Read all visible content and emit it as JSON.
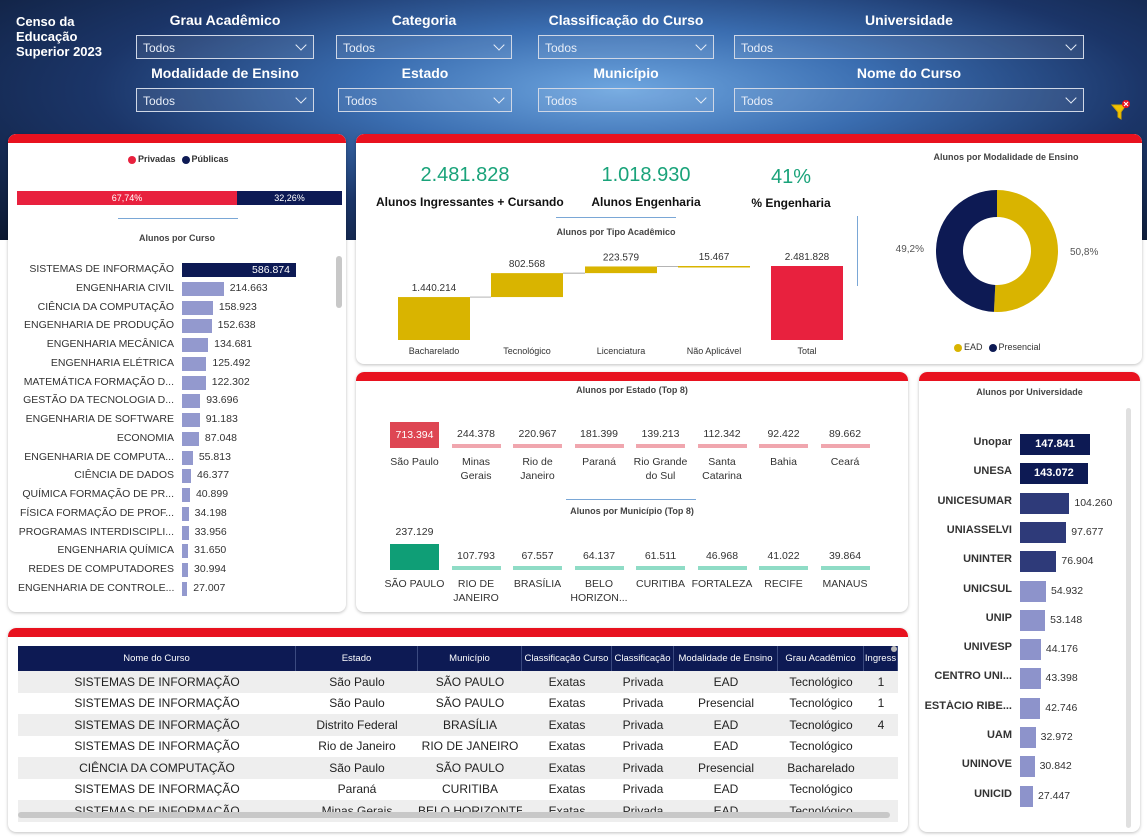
{
  "app_title": "Censo da Educação Superior 2023",
  "filters": [
    {
      "label": "Grau Acadêmico",
      "value": "Todos"
    },
    {
      "label": "Categoria",
      "value": "Todos"
    },
    {
      "label": "Classificação do Curso",
      "value": "Todos"
    },
    {
      "label": "Universidade",
      "value": "Todos"
    },
    {
      "label": "Modalidade de Ensino",
      "value": "Todos"
    },
    {
      "label": "Estado",
      "value": "Todos"
    },
    {
      "label": "Município",
      "value": "Todos"
    },
    {
      "label": "Nome do Curso",
      "value": "Todos"
    }
  ],
  "colors": {
    "accent_red": "#e8121f",
    "navy": "#0d1a54",
    "gold": "#d9b400",
    "green": "#1aa37a",
    "bar_purple": "#8d93cb"
  },
  "categoria": {
    "legend": [
      "Privadas",
      "Públicas"
    ],
    "privadas_pct_label": "67,74%",
    "publicas_pct_label": "32,26%",
    "privadas_pct": 67.74
  },
  "kpis": {
    "ingressantes_value": "2.481.828",
    "ingressantes_label": "Alunos Ingressantes + Cursando",
    "engenharia_value": "1.018.930",
    "engenharia_label": "Alunos Engenharia",
    "pct_value": "41%",
    "pct_label": "% Engenharia"
  },
  "chart_data": [
    {
      "type": "bar",
      "title": "Alunos por Curso",
      "orientation": "horizontal",
      "categories": [
        "SISTEMAS DE INFORMAÇÃO",
        "ENGENHARIA CIVIL",
        "CIÊNCIA DA COMPUTAÇÃO",
        "ENGENHARIA DE PRODUÇÃO",
        "ENGENHARIA MECÂNICA",
        "ENGENHARIA ELÉTRICA",
        "MATEMÁTICA FORMAÇÃO D...",
        "GESTÃO DA TECNOLOGIA D...",
        "ENGENHARIA DE SOFTWARE",
        "ECONOMIA",
        "ENGENHARIA DE COMPUTA...",
        "CIÊNCIA DE DADOS",
        "QUÍMICA FORMAÇÃO DE PR...",
        "FÍSICA FORMAÇÃO DE PROF...",
        "PROGRAMAS INTERDISCIPLI...",
        "ENGENHARIA QUÍMICA",
        "REDES DE COMPUTADORES",
        "ENGENHARIA DE CONTROLE..."
      ],
      "values": [
        586874,
        214663,
        158923,
        152638,
        134681,
        125492,
        122302,
        93696,
        91183,
        87048,
        55813,
        46377,
        40899,
        34198,
        33956,
        31650,
        30994,
        27007
      ],
      "labels": [
        "586.874",
        "214.663",
        "158.923",
        "152.638",
        "134.681",
        "125.492",
        "122.302",
        "93.696",
        "91.183",
        "87.048",
        "55.813",
        "46.377",
        "40.899",
        "34.198",
        "33.956",
        "31.650",
        "30.994",
        "27.007"
      ]
    },
    {
      "type": "bar",
      "title": "Alunos por Tipo Acadêmico",
      "subtype": "waterfall",
      "categories": [
        "Bacharelado",
        "Tecnológico",
        "Licenciatura",
        "Não Aplicável",
        "Total"
      ],
      "values": [
        1440214,
        802568,
        223579,
        15467,
        2481828
      ],
      "labels": [
        "1.440.214",
        "802.568",
        "223.579",
        "15.467",
        "2.481.828"
      ]
    },
    {
      "type": "pie",
      "title": "Alunos por Modalidade de Ensino",
      "donut": true,
      "categories": [
        "EAD",
        "Presencial"
      ],
      "values": [
        50.8,
        49.2
      ],
      "labels": [
        "50,8%",
        "49,2%"
      ],
      "legend_position": "bottom"
    },
    {
      "type": "bar",
      "title": "Alunos por Estado (Top 8)",
      "categories": [
        "São Paulo",
        "Minas Gerais",
        "Rio de Janeiro",
        "Paraná",
        "Rio Grande do Sul",
        "Santa Catarina",
        "Bahia",
        "Ceará"
      ],
      "category_lines": [
        [
          "São Paulo"
        ],
        [
          "Minas",
          "Gerais"
        ],
        [
          "Rio de",
          "Janeiro"
        ],
        [
          "Paraná"
        ],
        [
          "Rio Grande",
          "do Sul"
        ],
        [
          "Santa",
          "Catarina"
        ],
        [
          "Bahia"
        ],
        [
          "Ceará"
        ]
      ],
      "values": [
        713394,
        244378,
        220967,
        181399,
        139213,
        112342,
        92422,
        89662
      ],
      "labels": [
        "713.394",
        "244.378",
        "220.967",
        "181.399",
        "139.213",
        "112.342",
        "92.422",
        "89.662"
      ]
    },
    {
      "type": "bar",
      "title": "Alunos por Município (Top 8)",
      "categories": [
        "SÃO PAULO",
        "RIO DE JANEIRO",
        "BRASÍLIA",
        "BELO HORIZON...",
        "CURITIBA",
        "FORTALEZA",
        "RECIFE",
        "MANAUS"
      ],
      "category_lines": [
        [
          "SÃO PAULO"
        ],
        [
          "RIO DE",
          "JANEIRO"
        ],
        [
          "BRASÍLIA"
        ],
        [
          "BELO",
          "HORIZON..."
        ],
        [
          "CURITIBA"
        ],
        [
          "FORTALEZA"
        ],
        [
          "RECIFE"
        ],
        [
          "MANAUS"
        ]
      ],
      "values": [
        237129,
        107793,
        67557,
        64137,
        61511,
        46968,
        41022,
        39864
      ],
      "labels": [
        "237.129",
        "107.793",
        "67.557",
        "64.137",
        "61.511",
        "46.968",
        "41.022",
        "39.864"
      ]
    },
    {
      "type": "bar",
      "title": "Alunos por Universidade",
      "orientation": "horizontal",
      "categories": [
        "Unopar",
        "UNESA",
        "UNICESUMAR",
        "UNIASSELVI",
        "UNINTER",
        "UNICSUL",
        "UNIP",
        "UNIVESP",
        "CENTRO UNI...",
        "ESTÁCIO RIBE...",
        "UAM",
        "UNINOVE",
        "UNICID"
      ],
      "values": [
        147841,
        143072,
        104260,
        97677,
        76904,
        54932,
        53148,
        44176,
        43398,
        42746,
        32972,
        30842,
        27447
      ],
      "labels": [
        "147.841",
        "143.072",
        "104.260",
        "97.677",
        "76.904",
        "54.932",
        "53.148",
        "44.176",
        "43.398",
        "42.746",
        "32.972",
        "30.842",
        "27.447"
      ]
    }
  ],
  "table": {
    "columns": [
      "Nome do Curso",
      "Estado",
      "Município",
      "Classificação Curso",
      "Classificação",
      "Modalidade de Ensino",
      "Grau Acadêmico",
      "Ingress"
    ],
    "rows": [
      [
        "SISTEMAS DE INFORMAÇÃO",
        "São Paulo",
        "SÃO PAULO",
        "Exatas",
        "Privada",
        "EAD",
        "Tecnológico",
        "1"
      ],
      [
        "SISTEMAS DE INFORMAÇÃO",
        "São Paulo",
        "SÃO PAULO",
        "Exatas",
        "Privada",
        "Presencial",
        "Tecnológico",
        "1"
      ],
      [
        "SISTEMAS DE INFORMAÇÃO",
        "Distrito Federal",
        "BRASÍLIA",
        "Exatas",
        "Privada",
        "EAD",
        "Tecnológico",
        "4"
      ],
      [
        "SISTEMAS DE INFORMAÇÃO",
        "Rio de Janeiro",
        "RIO DE JANEIRO",
        "Exatas",
        "Privada",
        "EAD",
        "Tecnológico",
        ""
      ],
      [
        "CIÊNCIA DA COMPUTAÇÃO",
        "São Paulo",
        "SÃO PAULO",
        "Exatas",
        "Privada",
        "Presencial",
        "Bacharelado",
        ""
      ],
      [
        "SISTEMAS DE INFORMAÇÃO",
        "Paraná",
        "CURITIBA",
        "Exatas",
        "Privada",
        "EAD",
        "Tecnológico",
        ""
      ],
      [
        "SISTEMAS DE INFORMAÇÃO",
        "Minas Gerais",
        "BELO HORIZONTE",
        "Exatas",
        "Privada",
        "EAD",
        "Tecnológico",
        ""
      ]
    ]
  }
}
